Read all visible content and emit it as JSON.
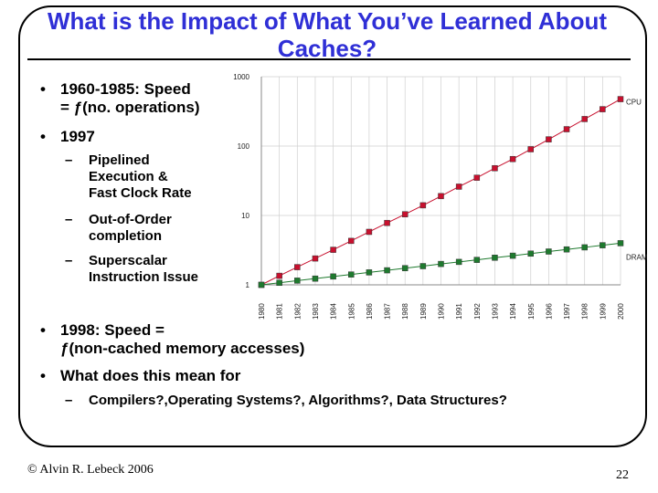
{
  "title": "What is the Impact of What You’ve Learned About Caches?",
  "bullets": {
    "b1_line1": "1960-1985: Speed",
    "b1_line2": "= ƒ(no. operations)",
    "b2": "1997",
    "sub1_line1": "Pipelined",
    "sub1_line2": "Execution &",
    "sub1_line3": "Fast Clock Rate",
    "sub2_line1": "Out-of-Order",
    "sub2_line2": "completion",
    "sub3_line1": "Superscalar",
    "sub3_line2": "Instruction Issue",
    "b3_line1": "1998: Speed =",
    "b3_line2": "ƒ(non-cached memory accesses)",
    "b4": "What does this mean for",
    "sub4": "Compilers?,Operating Systems?, Algorithms?, Data Structures?"
  },
  "footer": {
    "author": "© Alvin R. Lebeck 2006",
    "page": "22"
  },
  "chart_data": {
    "type": "line",
    "yscale": "log",
    "ylim": [
      1,
      1000
    ],
    "yticks": [
      "1",
      "10",
      "100",
      "1000"
    ],
    "categories": [
      "1980",
      "1981",
      "1982",
      "1983",
      "1984",
      "1985",
      "1986",
      "1987",
      "1988",
      "1989",
      "1990",
      "1991",
      "1992",
      "1993",
      "1994",
      "1995",
      "1996",
      "1997",
      "1998",
      "1999",
      "2000"
    ],
    "series": [
      {
        "name": "CPU",
        "color": "#c8102e",
        "values": [
          1,
          1.35,
          1.8,
          2.4,
          3.2,
          4.3,
          5.8,
          7.8,
          10.4,
          14,
          19,
          26,
          35,
          48,
          65,
          90,
          125,
          175,
          245,
          340,
          475
        ]
      },
      {
        "name": "DRAM",
        "color": "#1e7a2e",
        "values": [
          1,
          1.07,
          1.15,
          1.23,
          1.32,
          1.41,
          1.51,
          1.62,
          1.74,
          1.86,
          2.0,
          2.14,
          2.29,
          2.46,
          2.63,
          2.82,
          3.02,
          3.24,
          3.47,
          3.72,
          3.98
        ]
      }
    ]
  }
}
